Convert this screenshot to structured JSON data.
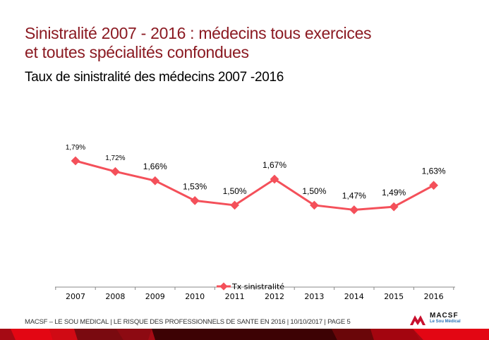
{
  "slide": {
    "title_line1": "Sinistralité 2007 - 2016 : médecins tous exercices",
    "title_line2": "et toutes spécialités confondues",
    "subtitle": "Taux de sinistralité des médecins 2007 -2016",
    "footer": "MACSF – LE SOU MEDICAL | LE RISQUE DES PROFESSIONNELS DE SANTE EN 2016 | 10/10/2017 | PAGE 5",
    "logo_name": "MACSF",
    "logo_sub": "Le Sou Médical",
    "colors": {
      "title": "#8b1a22",
      "series": "#f4505a",
      "brand_red": "#e30613"
    }
  },
  "chart_data": {
    "type": "line",
    "title": "Taux de sinistralité des médecins 2007 -2016",
    "xlabel": "",
    "ylabel": "",
    "categories": [
      "2007",
      "2008",
      "2009",
      "2010",
      "2011",
      "2012",
      "2013",
      "2014",
      "2015",
      "2016"
    ],
    "series": [
      {
        "name": "Tx sinistralité",
        "values": [
          1.79,
          1.72,
          1.66,
          1.53,
          1.5,
          1.67,
          1.5,
          1.47,
          1.49,
          1.63
        ],
        "labels": [
          "1,79%",
          "1,72%",
          "1,66%",
          "1,53%",
          "1,50%",
          "1,67%",
          "1,50%",
          "1,47%",
          "1,49%",
          "1,63%"
        ]
      }
    ],
    "ylim": [
      0.97,
      2.0
    ],
    "grid": false,
    "legend": "bottom-center",
    "y_axis_visible": false
  }
}
